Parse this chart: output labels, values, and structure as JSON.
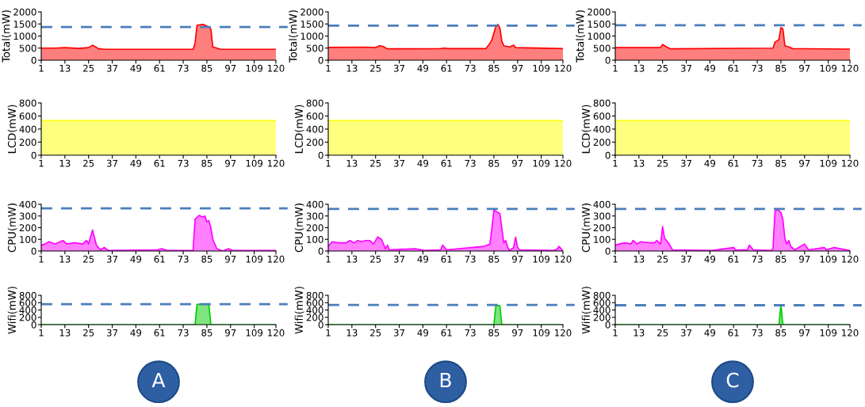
{
  "chart_data": [
    {
      "type": "area",
      "ylabel": "Total(mW)",
      "color": "#ff0000",
      "ylim": [
        0,
        2000
      ],
      "yticks": [
        0,
        500,
        1000,
        1500,
        2000
      ],
      "xlim": [
        1,
        120
      ],
      "xticks": [
        1,
        13,
        25,
        37,
        49,
        61,
        73,
        85,
        97,
        109,
        120
      ],
      "x": [
        1,
        8,
        13,
        20,
        25,
        27,
        30,
        33,
        50,
        78,
        79,
        80,
        83,
        85,
        87,
        88,
        90,
        92,
        120
      ],
      "values": [
        500,
        500,
        520,
        490,
        520,
        620,
        480,
        450,
        450,
        450,
        700,
        1450,
        1480,
        1420,
        1300,
        550,
        500,
        450,
        450
      ],
      "ref_lines": [
        {
          "axis": "y",
          "value": 1370,
          "color": "#4a7ebb",
          "line_style": "dashed"
        }
      ]
    },
    {
      "type": "area",
      "ylabel": "Total(mW)",
      "color": "#ff0000",
      "ylim": [
        0,
        2000
      ],
      "yticks": [
        0,
        500,
        1000,
        1500,
        2000
      ],
      "xlim": [
        1,
        120
      ],
      "xticks": [
        1,
        13,
        25,
        37,
        49,
        61,
        73,
        85,
        97,
        109,
        120
      ],
      "x": [
        1,
        20,
        25,
        27,
        29,
        31,
        58,
        60,
        62,
        81,
        83,
        84,
        86,
        87,
        88,
        89,
        90,
        93,
        95,
        96,
        120
      ],
      "values": [
        530,
        540,
        520,
        600,
        560,
        470,
        480,
        500,
        480,
        480,
        700,
        850,
        1400,
        1480,
        1350,
        800,
        600,
        550,
        620,
        520,
        480
      ],
      "ref_lines": [
        {
          "axis": "y",
          "value": 1430,
          "color": "#4a7ebb",
          "line_style": "dashed"
        }
      ]
    },
    {
      "type": "area",
      "ylabel": "Total(mW)",
      "color": "#ff0000",
      "ylim": [
        0,
        2000
      ],
      "yticks": [
        0,
        500,
        1000,
        1500,
        2000
      ],
      "xlim": [
        1,
        120
      ],
      "xticks": [
        1,
        13,
        25,
        37,
        49,
        61,
        73,
        85,
        97,
        109,
        120
      ],
      "x": [
        1,
        24,
        25,
        27,
        29,
        81,
        82,
        83,
        84,
        85,
        86,
        87,
        89,
        91,
        120
      ],
      "values": [
        520,
        520,
        650,
        550,
        470,
        500,
        750,
        800,
        850,
        1350,
        1300,
        600,
        550,
        480,
        460
      ],
      "ref_lines": [
        {
          "axis": "y",
          "value": 1450,
          "color": "#4a7ebb",
          "line_style": "dashed"
        }
      ]
    },
    {
      "type": "area",
      "ylabel": "LCD(mW)",
      "color": "#ffff00",
      "ylim": [
        0,
        800
      ],
      "yticks": [
        0,
        200,
        400,
        600,
        800
      ],
      "xlim": [
        1,
        120
      ],
      "xticks": [
        1,
        13,
        25,
        37,
        49,
        61,
        73,
        85,
        97,
        109,
        120
      ],
      "x": [
        1,
        120
      ],
      "values": [
        530,
        530
      ]
    },
    {
      "type": "area",
      "ylabel": "LCD(mW)",
      "color": "#ffff00",
      "ylim": [
        0,
        800
      ],
      "yticks": [
        0,
        200,
        400,
        600,
        800
      ],
      "xlim": [
        1,
        120
      ],
      "xticks": [
        1,
        13,
        25,
        37,
        49,
        61,
        73,
        85,
        97,
        109,
        120
      ],
      "x": [
        1,
        120
      ],
      "values": [
        530,
        530
      ]
    },
    {
      "type": "area",
      "ylabel": "LCD(mW)",
      "color": "#ffff00",
      "ylim": [
        0,
        800
      ],
      "yticks": [
        0,
        200,
        400,
        600,
        800
      ],
      "xlim": [
        1,
        120
      ],
      "xticks": [
        1,
        13,
        25,
        37,
        49,
        61,
        73,
        85,
        97,
        109,
        120
      ],
      "x": [
        1,
        120
      ],
      "values": [
        530,
        530
      ]
    },
    {
      "type": "area",
      "ylabel": "CPU(mW)",
      "color": "#ff00ff",
      "ylim": [
        0,
        400
      ],
      "yticks": [
        0,
        100,
        200,
        300,
        400
      ],
      "xlim": [
        1,
        120
      ],
      "xticks": [
        1,
        13,
        25,
        37,
        49,
        61,
        73,
        85,
        97,
        109,
        120
      ],
      "x": [
        1,
        3,
        5,
        8,
        12,
        14,
        18,
        22,
        24,
        25,
        27,
        29,
        31,
        33,
        35,
        60,
        62,
        65,
        78,
        79,
        81,
        83,
        84,
        85,
        86,
        87,
        88,
        89,
        90,
        93,
        96,
        98,
        120
      ],
      "values": [
        50,
        60,
        80,
        60,
        90,
        60,
        70,
        60,
        90,
        60,
        180,
        50,
        10,
        30,
        5,
        10,
        20,
        5,
        5,
        270,
        305,
        290,
        300,
        250,
        260,
        200,
        100,
        60,
        20,
        0,
        20,
        5,
        5
      ],
      "ref_lines": [
        {
          "axis": "y",
          "value": 365,
          "color": "#4a7ebb",
          "line_style": "dashed"
        }
      ]
    },
    {
      "type": "area",
      "ylabel": "CPU(mW)",
      "color": "#ff00ff",
      "ylim": [
        0,
        400
      ],
      "yticks": [
        0,
        100,
        200,
        300,
        400
      ],
      "xlim": [
        1,
        120
      ],
      "xticks": [
        1,
        13,
        25,
        37,
        49,
        61,
        73,
        85,
        97,
        109,
        120
      ],
      "x": [
        1,
        3,
        6,
        10,
        12,
        14,
        16,
        18,
        20,
        22,
        24,
        26,
        28,
        30,
        31,
        32,
        45,
        50,
        58,
        59,
        61,
        80,
        83,
        84,
        85,
        87,
        88,
        89,
        90,
        91,
        92,
        93,
        95,
        96,
        97,
        98,
        115,
        117,
        118,
        120
      ],
      "values": [
        40,
        80,
        70,
        70,
        90,
        70,
        90,
        80,
        90,
        90,
        60,
        120,
        100,
        20,
        50,
        10,
        20,
        5,
        10,
        50,
        10,
        40,
        60,
        200,
        350,
        330,
        320,
        200,
        70,
        90,
        30,
        5,
        30,
        120,
        30,
        10,
        5,
        15,
        40,
        0
      ],
      "ref_lines": [
        {
          "axis": "y",
          "value": 360,
          "color": "#4a7ebb",
          "line_style": "dashed"
        }
      ]
    },
    {
      "type": "area",
      "ylabel": "CPU(mW)",
      "color": "#ff00ff",
      "ylim": [
        0,
        400
      ],
      "yticks": [
        0,
        100,
        200,
        300,
        400
      ],
      "xlim": [
        1,
        120
      ],
      "xticks": [
        1,
        13,
        25,
        37,
        49,
        61,
        73,
        85,
        97,
        109,
        120
      ],
      "x": [
        1,
        3,
        6,
        9,
        10,
        12,
        14,
        18,
        21,
        22,
        24,
        25,
        26,
        28,
        30,
        50,
        61,
        62,
        68,
        69,
        71,
        80,
        81,
        82,
        83,
        85,
        86,
        87,
        88,
        89,
        90,
        92,
        97,
        99,
        107,
        108,
        112,
        120
      ],
      "values": [
        50,
        60,
        70,
        60,
        90,
        60,
        80,
        70,
        70,
        90,
        60,
        210,
        110,
        70,
        10,
        5,
        30,
        10,
        10,
        50,
        10,
        5,
        20,
        340,
        360,
        330,
        270,
        110,
        60,
        90,
        40,
        10,
        60,
        10,
        30,
        10,
        30,
        5
      ],
      "ref_lines": [
        {
          "axis": "y",
          "value": 360,
          "color": "#4a7ebb",
          "line_style": "dashed"
        }
      ]
    },
    {
      "type": "area",
      "ylabel": "Wifi(mW)",
      "color": "#00cc00",
      "ylim": [
        0,
        800
      ],
      "yticks": [
        0,
        200,
        400,
        600,
        800
      ],
      "xlim": [
        1,
        120
      ],
      "xticks": [
        1,
        13,
        25,
        37,
        49,
        61,
        73,
        85,
        97,
        109,
        120
      ],
      "x": [
        1,
        79,
        80,
        81,
        86,
        87,
        120
      ],
      "values": [
        0,
        0,
        550,
        560,
        560,
        0,
        0
      ],
      "ref_lines": [
        {
          "axis": "y",
          "value": 560,
          "color": "#4a7ebb",
          "line_style": "dashed"
        }
      ],
      "annotations": [
        "A"
      ]
    },
    {
      "type": "area",
      "ylabel": "Wifi(mW)",
      "color": "#00cc00",
      "ylim": [
        0,
        800
      ],
      "yticks": [
        0,
        200,
        400,
        600,
        800
      ],
      "xlim": [
        1,
        120
      ],
      "xticks": [
        1,
        13,
        25,
        37,
        49,
        61,
        73,
        85,
        97,
        109,
        120
      ],
      "x": [
        1,
        85,
        86,
        88,
        89,
        120
      ],
      "values": [
        0,
        0,
        520,
        520,
        0,
        0
      ],
      "ref_lines": [
        {
          "axis": "y",
          "value": 540,
          "color": "#4a7ebb",
          "line_style": "dashed"
        }
      ],
      "annotations": [
        "B"
      ]
    },
    {
      "type": "area",
      "ylabel": "Wifi(mW)",
      "color": "#00cc00",
      "ylim": [
        0,
        800
      ],
      "yticks": [
        0,
        200,
        400,
        600,
        800
      ],
      "xlim": [
        1,
        120
      ],
      "xticks": [
        1,
        13,
        25,
        37,
        49,
        61,
        73,
        85,
        97,
        109,
        120
      ],
      "x": [
        1,
        84,
        85,
        86,
        120
      ],
      "values": [
        0,
        0,
        550,
        0,
        0
      ],
      "ref_lines": [
        {
          "axis": "y",
          "value": 530,
          "color": "#4a7ebb",
          "line_style": "dashed"
        }
      ],
      "annotations": [
        "C"
      ]
    }
  ]
}
